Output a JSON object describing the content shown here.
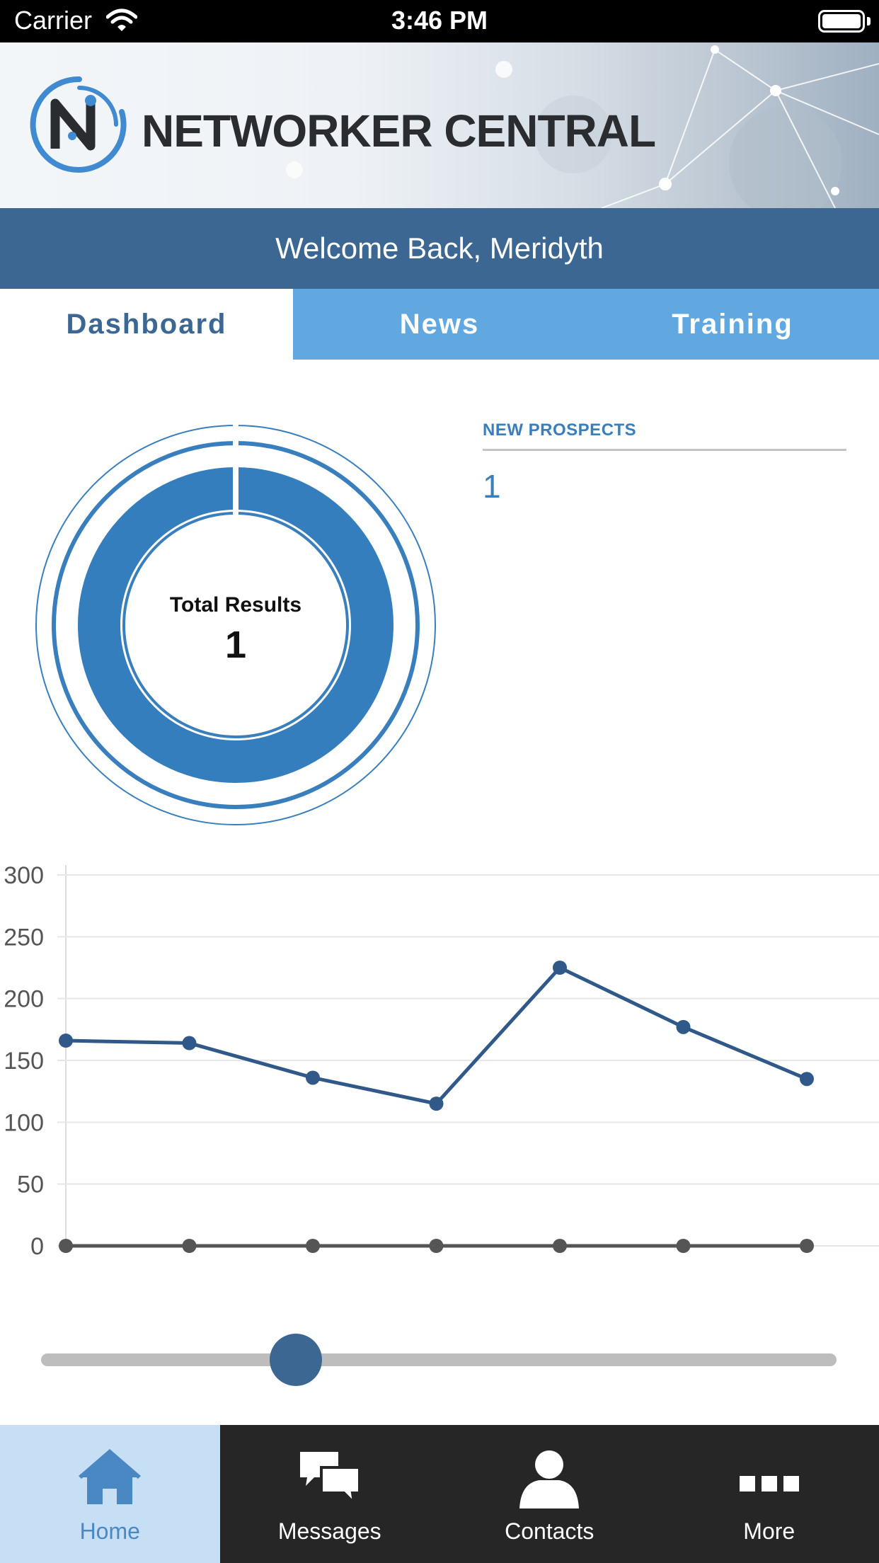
{
  "status_bar": {
    "carrier": "Carrier",
    "time": "3:46 PM"
  },
  "header": {
    "brand": "NETWORKER CENTRAL"
  },
  "welcome": "Welcome Back, Meridyth",
  "tabs": [
    {
      "label": "Dashboard",
      "active": true
    },
    {
      "label": "News",
      "active": false
    },
    {
      "label": "Training",
      "active": false
    }
  ],
  "summary": {
    "total_label": "Total Results",
    "total_value": "1",
    "prospects_label": "NEW PROSPECTS",
    "prospects_value": "1"
  },
  "slider": {
    "value_fraction": 0.32
  },
  "chart_data": {
    "type": "line",
    "x": [
      1,
      2,
      3,
      4,
      5,
      6,
      7
    ],
    "series": [
      {
        "values": [
          166,
          164,
          136,
          115,
          225,
          177,
          135
        ],
        "color": "#30598a"
      },
      {
        "values": [
          0,
          0,
          0,
          0,
          0,
          0,
          0
        ],
        "color": "#555555"
      }
    ],
    "ylim": [
      0,
      300
    ],
    "yticks": [
      0,
      50,
      100,
      150,
      200,
      250,
      300
    ],
    "grid": true
  },
  "ring_chart": {
    "value_fraction": 1.0,
    "color": "#357ebd"
  },
  "bottom_nav": [
    {
      "label": "Home",
      "icon": "home-icon",
      "active": true
    },
    {
      "label": "Messages",
      "icon": "messages-icon",
      "active": false
    },
    {
      "label": "Contacts",
      "icon": "contacts-icon",
      "active": false
    },
    {
      "label": "More",
      "icon": "more-icon",
      "active": false
    }
  ],
  "colors": {
    "primary": "#3c6792",
    "tab_bar": "#62a8e0",
    "accent": "#3a7fbd",
    "nav_active": "#c7dff5"
  }
}
